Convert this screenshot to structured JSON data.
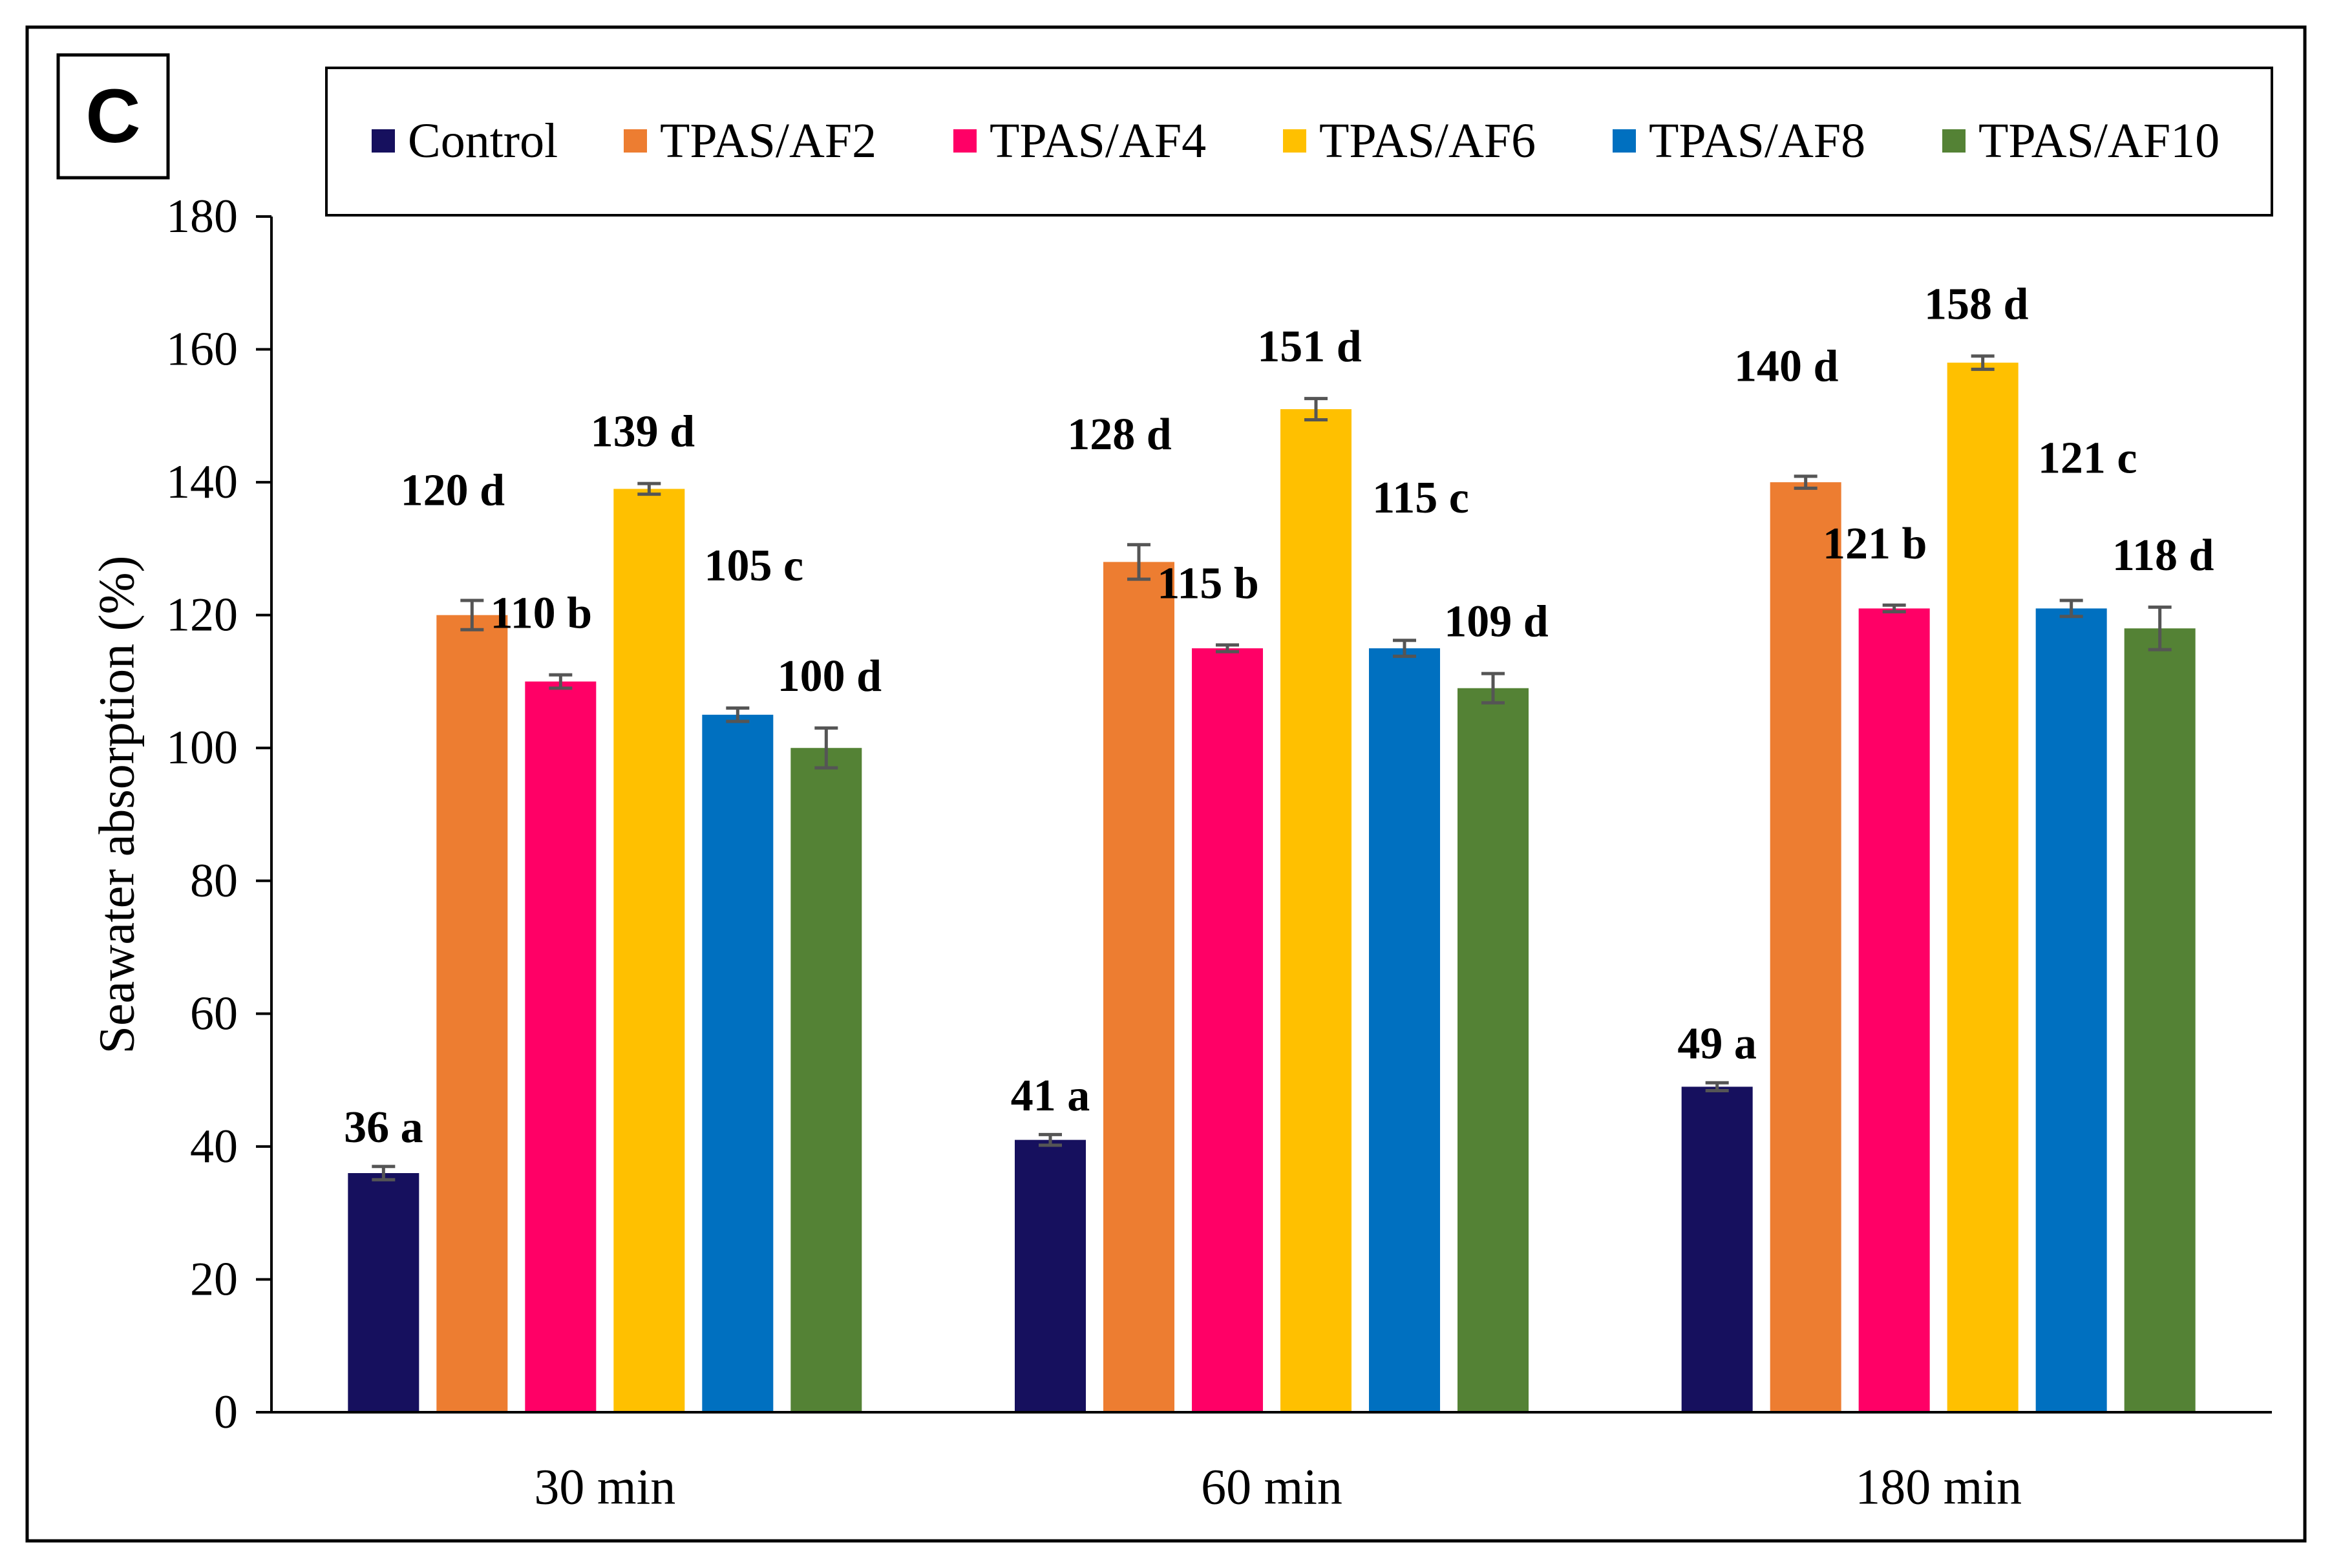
{
  "panel_label": "C",
  "chart_data": {
    "type": "bar",
    "categories": [
      "30 min",
      "60 min",
      "180 min"
    ],
    "ylabel": "Seawater absorption (%)",
    "xlabel": "",
    "ylim": [
      0,
      180
    ],
    "yticks": [
      0,
      20,
      40,
      60,
      80,
      100,
      120,
      140,
      160,
      180
    ],
    "grid": false,
    "legend_position": "top",
    "error_bars": true,
    "series": [
      {
        "name": "Control",
        "color": "#16105e",
        "values": [
          36,
          41,
          49
        ],
        "errors": [
          1.0,
          0.8,
          0.6
        ],
        "labels": [
          "36 a",
          "41 a",
          "49 a"
        ]
      },
      {
        "name": "TPAS/AF2",
        "color": "#ed7d31",
        "values": [
          120,
          128,
          140
        ],
        "errors": [
          2.2,
          2.6,
          0.9
        ],
        "labels": [
          "120 d",
          "128 d",
          "140 d"
        ]
      },
      {
        "name": "TPAS/AF4",
        "color": "#ff0066",
        "values": [
          110,
          115,
          121
        ],
        "errors": [
          1.0,
          0.5,
          0.5
        ],
        "labels": [
          "110 b",
          "115 b",
          "121 b"
        ]
      },
      {
        "name": "TPAS/AF6",
        "color": "#ffc000",
        "values": [
          139,
          151,
          158
        ],
        "errors": [
          0.8,
          1.6,
          1.0
        ],
        "labels": [
          "139 d",
          "151 d",
          "158 d"
        ]
      },
      {
        "name": "TPAS/AF8",
        "color": "#0070c0",
        "values": [
          105,
          115,
          121
        ],
        "errors": [
          1.0,
          1.2,
          1.2
        ],
        "labels": [
          "105 c",
          "115 c",
          "121 c"
        ]
      },
      {
        "name": "TPAS/AF10",
        "color": "#548235",
        "values": [
          100,
          109,
          118
        ],
        "errors": [
          3.0,
          2.2,
          3.2
        ],
        "labels": [
          "100 d",
          "109 d",
          "118 d"
        ]
      }
    ]
  }
}
